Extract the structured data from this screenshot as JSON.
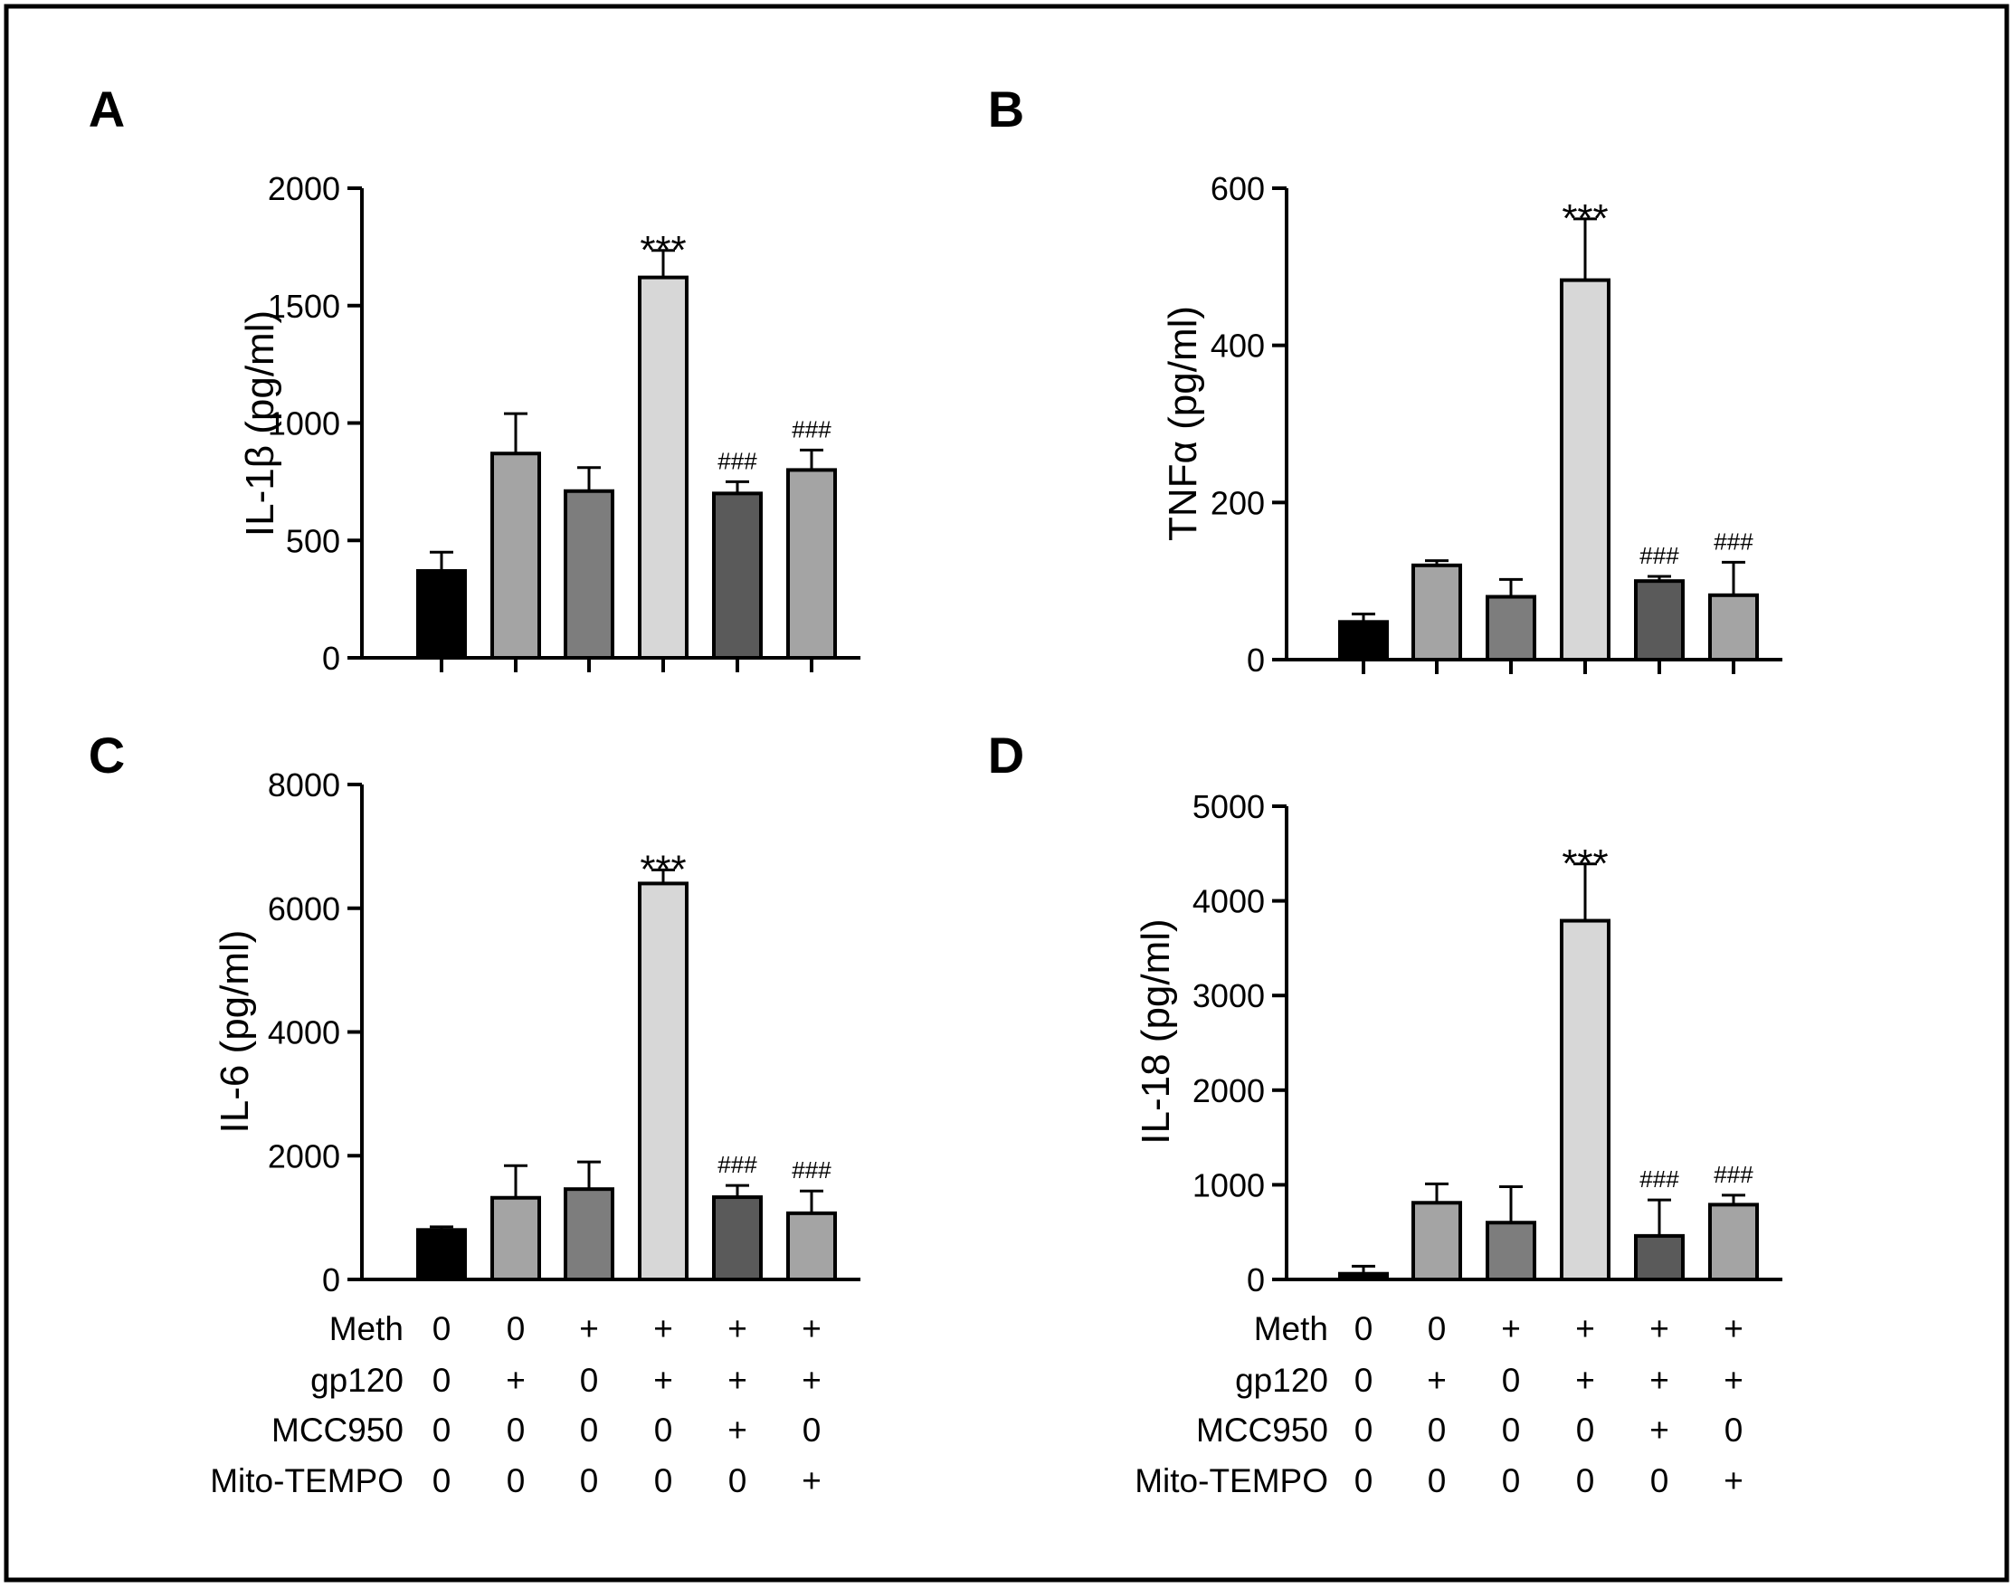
{
  "chart_data": [
    {
      "panel": "A",
      "type": "bar",
      "ylabel": "IL-1β (pg/ml)",
      "ylim": [
        0,
        2000
      ],
      "yticks": [
        0,
        500,
        1000,
        1500,
        2000
      ],
      "ytick_labels": [
        "0",
        "500",
        "1000",
        "1500",
        "2000"
      ],
      "values": [
        370,
        870,
        710,
        1620,
        700,
        800
      ],
      "errors": [
        80,
        170,
        100,
        115,
        50,
        85
      ],
      "colors": [
        "#000000",
        "#a4a4a4",
        "#7d7d7d",
        "#d7d7d7",
        "#5a5a5a",
        "#a4a4a4"
      ],
      "annotations": [
        "",
        "",
        "",
        "***",
        "###",
        "###"
      ]
    },
    {
      "panel": "B",
      "type": "bar",
      "ylabel": "TNFα (pg/ml)",
      "ylim": [
        0,
        600
      ],
      "yticks": [
        0,
        200,
        400,
        600
      ],
      "ytick_labels": [
        "0",
        "200",
        "400",
        "600"
      ],
      "values": [
        48,
        120,
        80,
        483,
        100,
        82
      ],
      "errors": [
        10,
        6,
        22,
        78,
        6,
        42
      ],
      "colors": [
        "#000000",
        "#a4a4a4",
        "#7d7d7d",
        "#d7d7d7",
        "#5a5a5a",
        "#a4a4a4"
      ],
      "annotations": [
        "",
        "",
        "",
        "***",
        "###",
        "###"
      ]
    },
    {
      "panel": "C",
      "type": "bar",
      "ylabel": "IL-6 (pg/ml)",
      "ylim": [
        0,
        8000
      ],
      "yticks": [
        0,
        2000,
        4000,
        6000,
        8000
      ],
      "ytick_labels": [
        "0",
        "2000",
        "4000",
        "6000",
        "8000"
      ],
      "values": [
        800,
        1320,
        1460,
        6400,
        1330,
        1070
      ],
      "errors": [
        50,
        520,
        440,
        220,
        190,
        360
      ],
      "colors": [
        "#000000",
        "#a4a4a4",
        "#7d7d7d",
        "#d7d7d7",
        "#5a5a5a",
        "#a4a4a4"
      ],
      "annotations": [
        "",
        "",
        "",
        "***",
        "###",
        "###"
      ]
    },
    {
      "panel": "D",
      "type": "bar",
      "ylabel": "IL-18 (pg/ml)",
      "ylim": [
        0,
        5000
      ],
      "yticks": [
        0,
        1000,
        2000,
        3000,
        4000,
        5000
      ],
      "ytick_labels": [
        "0",
        "1000",
        "2000",
        "3000",
        "4000",
        "5000"
      ],
      "values": [
        60,
        810,
        600,
        3790,
        460,
        790
      ],
      "errors": [
        80,
        200,
        380,
        600,
        380,
        100
      ],
      "colors": [
        "#000000",
        "#a4a4a4",
        "#7d7d7d",
        "#d7d7d7",
        "#5a5a5a",
        "#a4a4a4"
      ],
      "annotations": [
        "",
        "",
        "",
        "***",
        "###",
        "###"
      ]
    }
  ],
  "treatment_table": {
    "rows": [
      {
        "label": "Meth",
        "values": [
          "0",
          "0",
          "+",
          "+",
          "+",
          "+"
        ]
      },
      {
        "label": "gp120",
        "values": [
          "0",
          "+",
          "0",
          "+",
          "+",
          "+"
        ]
      },
      {
        "label": "MCC950",
        "values": [
          "0",
          "0",
          "0",
          "0",
          "+",
          "0"
        ]
      },
      {
        "label": "Mito-TEMPO",
        "values": [
          "0",
          "0",
          "0",
          "0",
          "0",
          "+"
        ]
      }
    ]
  }
}
